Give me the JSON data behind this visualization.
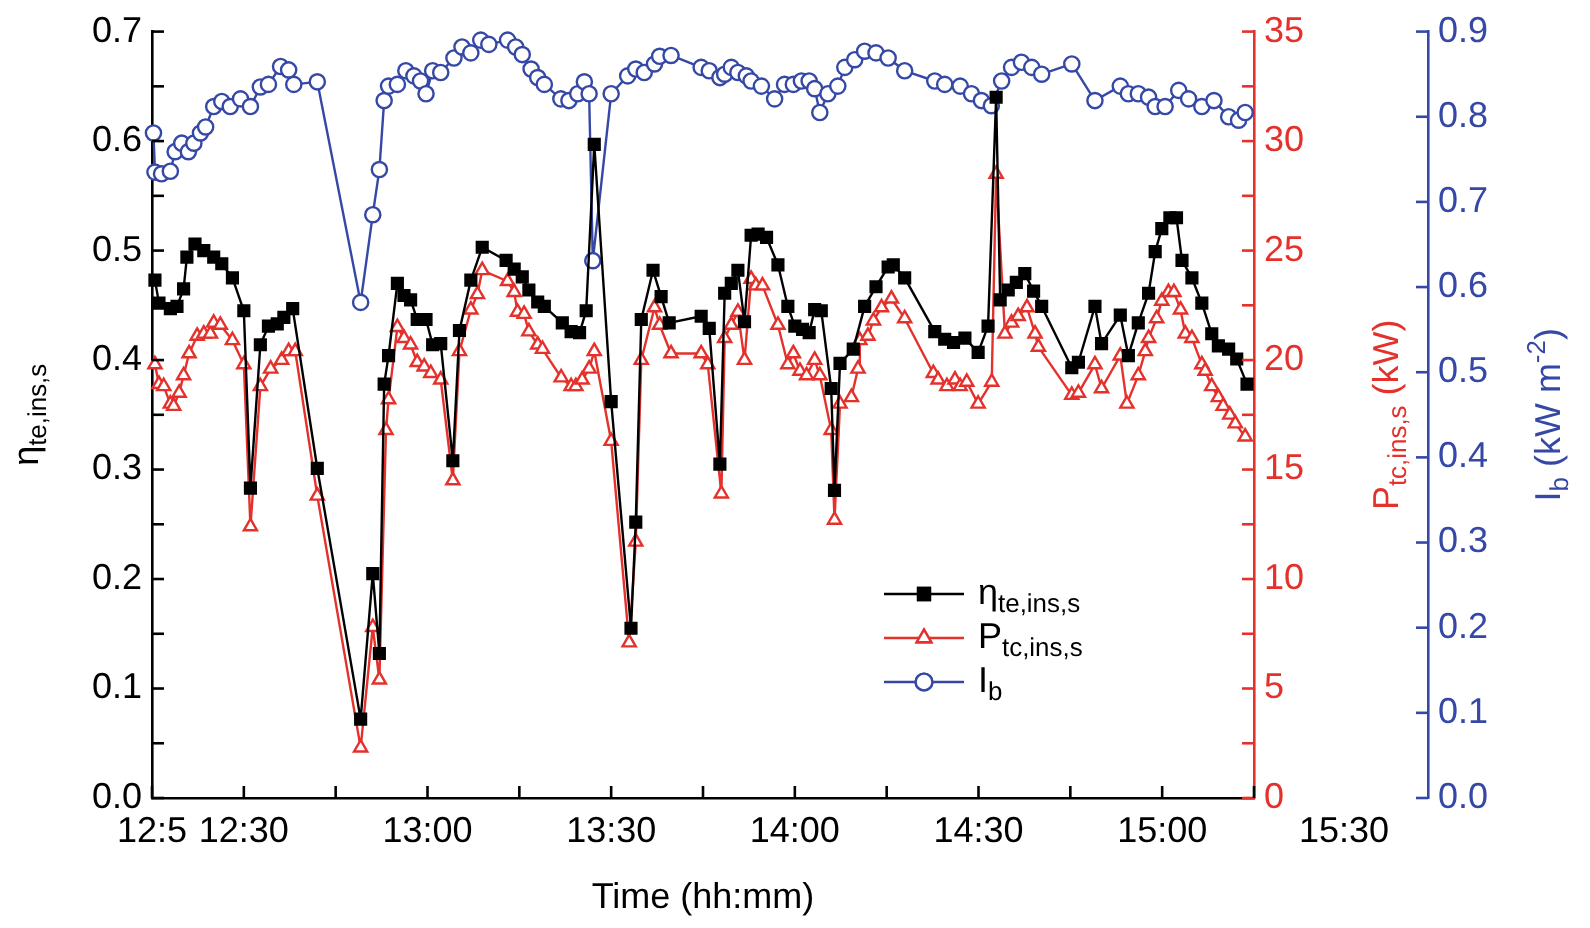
{
  "chart_data": {
    "type": "line",
    "xlabel": "Time (hh:mm)",
    "ylabel": "η$_{te,ins,s}$",
    "y2label": "P$_{tc,ins,s}$ (kW)",
    "y3label": "I$_{b}$ (kW m$^{-2}$)",
    "xlim": [
      12.25,
      15.25
    ],
    "xticks": [
      {
        "value": 12.25,
        "label": "12:5"
      },
      {
        "value": 12.5,
        "label": "12:30"
      },
      {
        "value": 12.75,
        "label": null
      },
      {
        "value": 13,
        "label": "13:00"
      },
      {
        "value": 13.25,
        "label": null
      },
      {
        "value": 13.5,
        "label": "13:30"
      },
      {
        "value": 13.75,
        "label": null
      },
      {
        "value": 14,
        "label": "14:00"
      },
      {
        "value": 14.25,
        "label": null
      },
      {
        "value": 14.5,
        "label": "14:30"
      },
      {
        "value": 14.75,
        "label": null
      },
      {
        "value": 15,
        "label": "15:00"
      },
      {
        "value": 15.25,
        "label": null
      }
    ],
    "ylim": [
      0,
      0.7
    ],
    "yticks": [
      {
        "value": 0,
        "label": "0.0"
      },
      {
        "value": 0.05,
        "label": null
      },
      0.1,
      {
        "value": 0.15,
        "label": null
      },
      0.2,
      {
        "value": 0.25,
        "label": null
      },
      0.3,
      {
        "value": 0.35,
        "label": null
      },
      0.4,
      {
        "value": 0.45,
        "label": null
      },
      0.5,
      {
        "value": 0.55,
        "label": null
      },
      0.6,
      {
        "value": 0.65,
        "label": null
      },
      0.7
    ],
    "y2lim": [
      0,
      35
    ],
    "y2ticks": [
      0,
      {
        "value": 2.5,
        "label": null
      },
      5,
      {
        "value": 7.5,
        "label": null
      },
      10,
      {
        "value": 12.5,
        "label": null
      },
      15,
      {
        "value": 17.5,
        "label": null
      },
      20,
      {
        "value": 22.5,
        "label": null
      },
      25,
      {
        "value": 27.5,
        "label": null
      },
      30,
      {
        "value": 32.5,
        "label": null
      },
      35
    ],
    "y3lim": [
      0,
      0.9
    ],
    "y3ticks": [
      {
        "value": 0,
        "label": "0.0"
      },
      0.1,
      0.2,
      0.3,
      0.4,
      0.5,
      0.6,
      0.7,
      0.8,
      0.9
    ],
    "grid": false,
    "legend": "bottom right",
    "line_style": "solid",
    "annotations": [
      "15:30"
    ],
    "series": [
      {
        "name": "η$_{te,ins,s}$",
        "color": "#000000",
        "marker": "square",
        "axis": "y",
        "x": [
          12.258,
          12.269,
          12.3,
          12.318,
          12.336,
          12.345,
          12.367,
          12.391,
          12.418,
          12.44,
          12.469,
          12.5,
          12.518,
          12.545,
          12.567,
          12.591,
          12.609,
          12.633,
          12.7,
          12.818,
          12.851,
          12.869,
          12.882,
          12.894,
          12.918,
          12.936,
          12.954,
          12.972,
          12.996,
          13.014,
          13.036,
          13.069,
          13.087,
          13.118,
          13.149,
          13.214,
          13.236,
          13.258,
          13.276,
          13.3,
          13.318,
          13.367,
          13.391,
          13.414,
          13.432,
          13.454,
          13.5,
          13.554,
          13.567,
          13.582,
          13.614,
          13.636,
          13.658,
          13.745,
          13.767,
          13.796,
          13.809,
          13.827,
          13.845,
          13.863,
          13.881,
          13.9,
          13.923,
          13.954,
          13.981,
          14.0,
          14.021,
          14.039,
          14.054,
          14.072,
          14.099,
          14.108,
          14.123,
          14.159,
          14.19,
          14.221,
          14.254,
          14.268,
          14.299,
          14.381,
          14.408,
          14.432,
          14.463,
          14.499,
          14.526,
          14.548,
          14.559,
          14.581,
          14.603,
          14.626,
          14.65,
          14.672,
          14.754,
          14.772,
          14.817,
          14.835,
          14.886,
          14.908,
          14.935,
          14.963,
          14.981,
          14.999,
          15.021,
          15.039,
          15.054,
          15.081,
          15.108,
          15.135,
          15.153,
          15.181,
          15.203,
          15.231
        ],
        "values": [
          0.473,
          0.452,
          0.447,
          0.449,
          0.465,
          0.494,
          0.506,
          0.5,
          0.494,
          0.488,
          0.475,
          0.445,
          0.283,
          0.414,
          0.431,
          0.433,
          0.439,
          0.447,
          0.301,
          0.072,
          0.205,
          0.132,
          0.378,
          0.404,
          0.47,
          0.459,
          0.455,
          0.437,
          0.437,
          0.414,
          0.415,
          0.308,
          0.427,
          0.473,
          0.503,
          0.491,
          0.483,
          0.476,
          0.464,
          0.453,
          0.449,
          0.434,
          0.426,
          0.425,
          0.445,
          0.597,
          0.362,
          0.155,
          0.252,
          0.437,
          0.482,
          0.458,
          0.434,
          0.44,
          0.429,
          0.305,
          0.461,
          0.47,
          0.482,
          0.435,
          0.514,
          0.515,
          0.512,
          0.487,
          0.449,
          0.431,
          0.428,
          0.425,
          0.446,
          0.445,
          0.374,
          0.281,
          0.397,
          0.41,
          0.449,
          0.467,
          0.485,
          0.487,
          0.475,
          0.426,
          0.419,
          0.416,
          0.42,
          0.407,
          0.431,
          0.64,
          0.455,
          0.464,
          0.471,
          0.479,
          0.463,
          0.449,
          0.393,
          0.398,
          0.449,
          0.415,
          0.441,
          0.404,
          0.434,
          0.461,
          0.499,
          0.52,
          0.53,
          0.53,
          0.491,
          0.475,
          0.452,
          0.424,
          0.413,
          0.41,
          0.401,
          0.378
        ]
      },
      {
        "name": "P$_{tc,ins,s}$",
        "color": "#e4312b",
        "marker": "triangle",
        "axis": "y2",
        "x": [
          12.258,
          12.269,
          12.282,
          12.3,
          12.309,
          12.324,
          12.336,
          12.351,
          12.373,
          12.391,
          12.409,
          12.418,
          12.436,
          12.469,
          12.5,
          12.518,
          12.545,
          12.573,
          12.603,
          12.622,
          12.64,
          12.7,
          12.818,
          12.851,
          12.869,
          12.887,
          12.894,
          12.918,
          12.936,
          12.954,
          12.972,
          12.991,
          13.009,
          13.036,
          13.069,
          13.087,
          13.118,
          13.136,
          13.149,
          13.218,
          13.236,
          13.245,
          13.263,
          13.276,
          13.3,
          13.313,
          13.364,
          13.391,
          13.404,
          13.421,
          13.44,
          13.454,
          13.5,
          13.549,
          13.567,
          13.582,
          13.618,
          13.632,
          13.663,
          13.745,
          13.763,
          13.8,
          13.809,
          13.827,
          13.845,
          13.863,
          13.881,
          13.894,
          13.912,
          13.954,
          13.981,
          13.996,
          14.014,
          14.032,
          14.054,
          14.068,
          14.099,
          14.108,
          14.123,
          14.154,
          14.172,
          14.177,
          14.199,
          14.214,
          14.236,
          14.263,
          14.299,
          14.377,
          14.39,
          14.414,
          14.436,
          14.45,
          14.468,
          14.499,
          14.536,
          14.548,
          14.572,
          14.59,
          14.608,
          14.632,
          14.654,
          14.663,
          14.754,
          14.772,
          14.817,
          14.835,
          14.886,
          14.904,
          14.935,
          14.954,
          14.963,
          14.985,
          14.999,
          15.017,
          15.032,
          15.05,
          15.063,
          15.081,
          15.108,
          15.117,
          15.135,
          15.153,
          15.166,
          15.184,
          15.199,
          15.226
        ],
        "values": [
          19.8,
          18.9,
          18.8,
          18.0,
          17.9,
          18.5,
          19.3,
          20.3,
          21.1,
          21.2,
          21.2,
          21.7,
          21.6,
          20.9,
          19.8,
          12.4,
          18.8,
          19.6,
          20.0,
          20.4,
          20.4,
          13.8,
          2.3,
          7.8,
          5.4,
          16.8,
          18.2,
          21.5,
          21.0,
          20.7,
          19.9,
          19.7,
          19.4,
          19.1,
          14.5,
          20.4,
          22.3,
          23.0,
          24.1,
          23.6,
          23.1,
          22.2,
          22.1,
          21.3,
          20.7,
          20.5,
          19.2,
          18.8,
          18.8,
          19.1,
          19.6,
          20.4,
          16.3,
          7.1,
          11.7,
          20.0,
          22.4,
          21.6,
          20.3,
          20.3,
          19.8,
          13.9,
          21.0,
          21.6,
          22.2,
          20.0,
          23.7,
          23.4,
          23.4,
          21.6,
          19.8,
          20.3,
          19.5,
          19.3,
          20.0,
          19.3,
          16.8,
          12.7,
          18.0,
          18.3,
          19.6,
          20.9,
          21.1,
          21.8,
          22.4,
          22.8,
          21.9,
          19.4,
          19.1,
          18.8,
          19.1,
          18.8,
          19.0,
          18.0,
          19.0,
          28.5,
          21.2,
          21.7,
          22.0,
          22.4,
          21.2,
          20.6,
          18.4,
          18.5,
          19.8,
          18.7,
          20.2,
          18.0,
          19.3,
          20.4,
          21.0,
          21.9,
          22.7,
          23.1,
          23.1,
          22.3,
          21.2,
          21.0,
          19.8,
          19.5,
          18.8,
          18.3,
          17.9,
          17.5,
          17.1,
          16.5
        ]
      },
      {
        "name": "I$_{b}$",
        "color": "#3548a6",
        "marker": "circle",
        "axis": "y3",
        "x": [
          12.254,
          12.258,
          12.276,
          12.3,
          12.313,
          12.331,
          12.349,
          12.364,
          12.382,
          12.396,
          12.418,
          12.44,
          12.463,
          12.491,
          12.518,
          12.545,
          12.567,
          12.6,
          12.622,
          12.636,
          12.7,
          12.818,
          12.851,
          12.869,
          12.882,
          12.894,
          12.918,
          12.941,
          12.963,
          12.981,
          12.996,
          13.014,
          13.036,
          13.072,
          13.094,
          13.118,
          13.145,
          13.167,
          13.218,
          13.24,
          13.258,
          13.282,
          13.3,
          13.318,
          13.363,
          13.385,
          13.409,
          13.427,
          13.44,
          13.45,
          13.5,
          13.545,
          13.567,
          13.59,
          13.618,
          13.632,
          13.663,
          13.745,
          13.767,
          13.796,
          13.809,
          13.827,
          13.845,
          13.868,
          13.881,
          13.909,
          13.945,
          13.972,
          13.996,
          14.018,
          14.039,
          14.054,
          14.068,
          14.09,
          14.117,
          14.136,
          14.163,
          14.19,
          14.221,
          14.254,
          14.299,
          14.381,
          14.408,
          14.45,
          14.481,
          14.508,
          14.535,
          14.563,
          14.59,
          14.617,
          14.645,
          14.672,
          14.754,
          14.817,
          14.886,
          14.908,
          14.935,
          14.963,
          14.981,
          15.008,
          15.045,
          15.072,
          15.108,
          15.141,
          15.181,
          15.208,
          15.226
        ],
        "values": [
          0.781,
          0.735,
          0.733,
          0.736,
          0.759,
          0.769,
          0.759,
          0.769,
          0.781,
          0.788,
          0.812,
          0.818,
          0.812,
          0.821,
          0.812,
          0.835,
          0.838,
          0.859,
          0.855,
          0.838,
          0.841,
          0.582,
          0.685,
          0.738,
          0.819,
          0.836,
          0.838,
          0.854,
          0.848,
          0.842,
          0.827,
          0.854,
          0.852,
          0.869,
          0.882,
          0.875,
          0.89,
          0.885,
          0.89,
          0.882,
          0.873,
          0.856,
          0.846,
          0.838,
          0.821,
          0.819,
          0.827,
          0.841,
          0.827,
          0.631,
          0.827,
          0.848,
          0.856,
          0.852,
          0.862,
          0.871,
          0.872,
          0.858,
          0.854,
          0.846,
          0.85,
          0.858,
          0.852,
          0.848,
          0.842,
          0.836,
          0.821,
          0.838,
          0.838,
          0.842,
          0.842,
          0.833,
          0.805,
          0.827,
          0.836,
          0.858,
          0.867,
          0.877,
          0.875,
          0.869,
          0.854,
          0.842,
          0.838,
          0.836,
          0.827,
          0.819,
          0.813,
          0.842,
          0.858,
          0.864,
          0.858,
          0.85,
          0.862,
          0.819,
          0.836,
          0.827,
          0.827,
          0.823,
          0.812,
          0.812,
          0.831,
          0.821,
          0.812,
          0.819,
          0.8,
          0.796,
          0.805
        ]
      }
    ]
  }
}
